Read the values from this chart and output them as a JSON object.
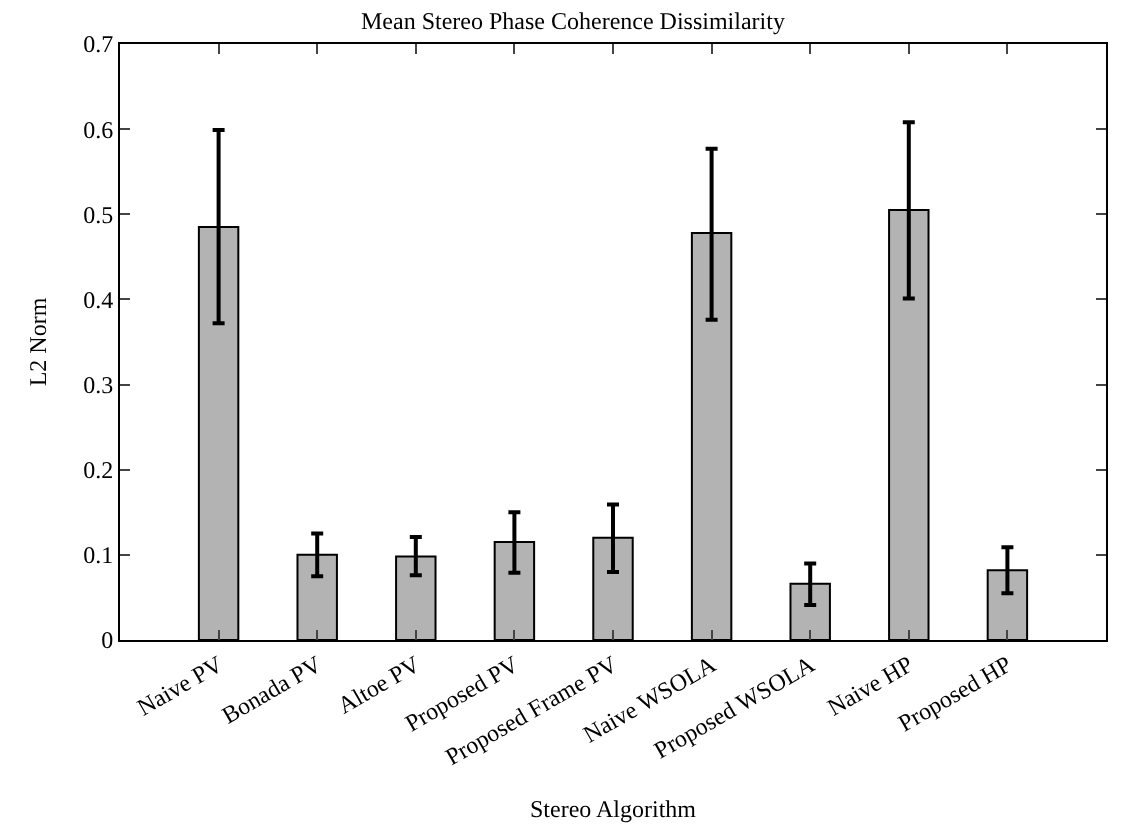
{
  "chart_data": {
    "type": "bar",
    "title": "Mean Stereo Phase Coherence Dissimilarity",
    "xlabel": "Stereo Algorithm",
    "ylabel": "L2 Norm",
    "categories": [
      "Naive PV",
      "Bonada PV",
      "Altoe PV",
      "Proposed PV",
      "Proposed Frame PV",
      "Naive WSOLA",
      "Proposed WSOLA",
      "Naive HP",
      "Proposed HP"
    ],
    "values": [
      0.485,
      0.1,
      0.098,
      0.115,
      0.12,
      0.478,
      0.066,
      0.505,
      0.082
    ],
    "errors": [
      [
        0.372,
        0.599
      ],
      [
        0.075,
        0.125
      ],
      [
        0.076,
        0.121
      ],
      [
        0.079,
        0.15
      ],
      [
        0.08,
        0.159
      ],
      [
        0.376,
        0.577
      ],
      [
        0.041,
        0.09
      ],
      [
        0.401,
        0.608
      ],
      [
        0.055,
        0.109
      ]
    ],
    "color": "#b3b3b3",
    "ylim": [
      0,
      0.7
    ],
    "yticks": [
      0,
      0.1,
      0.2,
      0.3,
      0.4,
      0.5,
      0.6,
      0.7
    ]
  }
}
